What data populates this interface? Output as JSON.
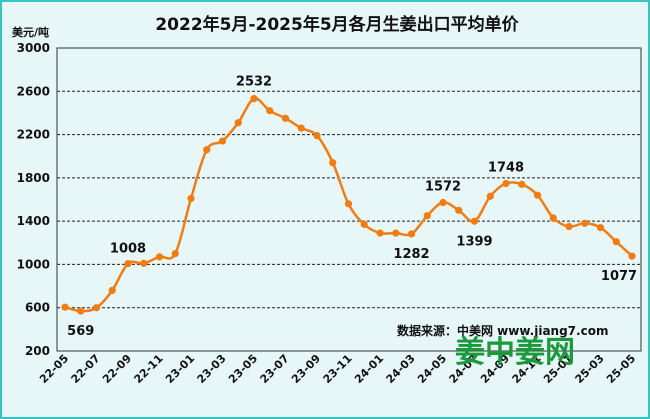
{
  "chart_data": {
    "type": "line",
    "title": "2022年5月-2025年5月各月生姜出口平均单价",
    "ylabel": "美元/吨",
    "xlabel": "",
    "ylim": [
      200,
      3000
    ],
    "yticks": [
      200,
      600,
      1000,
      1400,
      1800,
      2200,
      2600,
      3000
    ],
    "grid": "horizontal dashed",
    "legend": "none",
    "x": [
      "22-05",
      "22-06",
      "22-07",
      "22-08",
      "22-09",
      "22-10",
      "22-11",
      "22-12",
      "23-01",
      "23-02",
      "23-03",
      "23-04",
      "23-05",
      "23-06",
      "23-07",
      "23-08",
      "23-09",
      "23-10",
      "23-11",
      "23-12",
      "24-01",
      "24-02",
      "24-03",
      "24-04",
      "24-05",
      "24-06",
      "24-07",
      "24-08",
      "24-09",
      "24-10",
      "24-11",
      "24-12",
      "25-01",
      "25-02",
      "25-03",
      "25-04",
      "25-05"
    ],
    "xtick_labels": [
      "22-05",
      "22-07",
      "22-09",
      "22-11",
      "23-01",
      "23-03",
      "23-05",
      "23-07",
      "23-09",
      "23-11",
      "24-01",
      "24-03",
      "24-05",
      "24-07",
      "24-09",
      "24-11",
      "25-01",
      "25-03",
      "25-05"
    ],
    "series": [
      {
        "values": [
          605,
          569,
          600,
          760,
          1008,
          1010,
          1070,
          1100,
          1610,
          2060,
          2140,
          2310,
          2532,
          2420,
          2350,
          2260,
          2190,
          1940,
          1560,
          1370,
          1290,
          1290,
          1282,
          1450,
          1572,
          1500,
          1399,
          1630,
          1748,
          1740,
          1640,
          1430,
          1350,
          1380,
          1340,
          1210,
          1077
        ],
        "color": "#f07c12"
      }
    ],
    "annotations": [
      {
        "index": 1,
        "text": "569"
      },
      {
        "index": 4,
        "text": "1008"
      },
      {
        "index": 12,
        "text": "2532"
      },
      {
        "index": 22,
        "text": "1282"
      },
      {
        "index": 24,
        "text": "1572"
      },
      {
        "index": 26,
        "text": "1399"
      },
      {
        "index": 28,
        "text": "1748"
      },
      {
        "index": 36,
        "text": "1077"
      }
    ],
    "source_text": "数据来源：中美网 www.jiang7.com"
  },
  "watermark": {
    "text": "姜中姜网"
  },
  "colors": {
    "line": "#f07c12",
    "background": "#e7f6f7",
    "border": "#36c4c4",
    "logo": "#1a9a3b"
  }
}
